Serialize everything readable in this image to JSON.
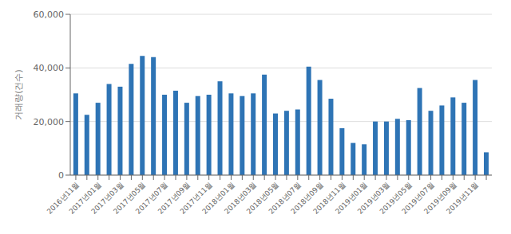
{
  "chart_data": {
    "type": "bar",
    "ylabel": "거래량(건수)",
    "categories": [
      "2016년11월",
      null,
      "2017년01월",
      null,
      "2017년03월",
      null,
      "2017년05월",
      null,
      "2017년07월",
      null,
      "2017년09월",
      null,
      "2017년11월",
      null,
      "2018년01월",
      null,
      "2018년03월",
      null,
      "2018년05월",
      null,
      "2018년07월",
      null,
      "2018년09월",
      null,
      "2018년11월",
      null,
      "2019년01월",
      null,
      "2019년03월",
      null,
      "2019년05월",
      null,
      "2019년07월",
      null,
      "2019년09월",
      null,
      "2019년11월",
      null
    ],
    "values": [
      30500,
      22500,
      27000,
      34000,
      33000,
      41500,
      44500,
      44000,
      30000,
      31500,
      27000,
      29500,
      30000,
      35000,
      30500,
      29500,
      30500,
      37500,
      23000,
      24000,
      24500,
      40500,
      35500,
      28500,
      17500,
      12000,
      11500,
      20000,
      20000,
      21000,
      20500,
      32500,
      24000,
      26000,
      29000,
      27000,
      35500,
      8500
    ],
    "color": "#2E74B5",
    "ylim": [
      0,
      60000
    ],
    "yticks": [
      0,
      {
        "value": 20000,
        "label": "20,000"
      },
      {
        "value": 40000,
        "label": "40,000"
      },
      {
        "value": 60000,
        "label": "60,000"
      }
    ],
    "grid": true
  }
}
